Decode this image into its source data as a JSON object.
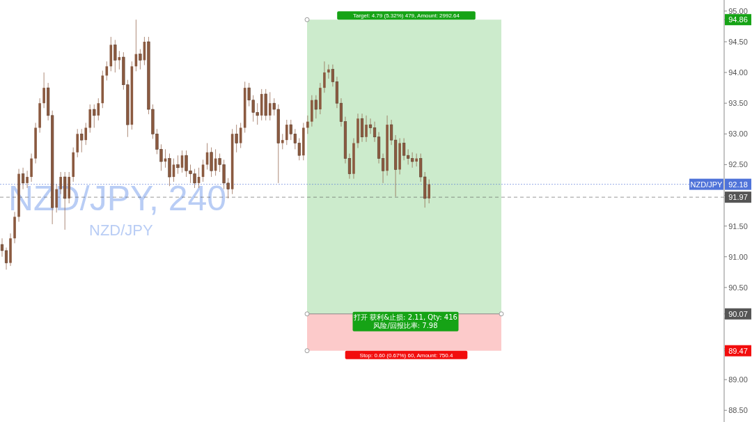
{
  "chart_data": {
    "type": "candlestick",
    "title": "NZD/JPY, 240",
    "subtitle": "NZD/JPY",
    "categories": [
      null,
      null,
      null,
      null,
      null,
      null,
      null,
      null,
      null,
      null,
      null,
      null,
      null,
      null,
      null,
      null,
      null,
      null,
      null,
      null,
      null,
      null,
      null,
      null,
      null,
      null,
      null,
      null,
      null,
      null,
      null,
      null,
      null,
      null,
      null,
      null,
      null,
      null,
      null,
      null,
      null,
      null,
      null,
      null,
      null,
      null,
      null,
      null,
      null,
      null,
      null,
      null,
      null,
      null,
      null,
      null,
      null,
      null,
      null,
      null,
      null,
      null,
      null,
      null,
      null,
      null,
      null,
      null,
      null,
      null,
      null,
      null,
      null,
      null,
      null,
      null,
      null,
      null,
      null,
      null,
      null,
      null,
      null,
      null,
      null,
      null,
      null,
      null,
      null,
      null,
      null,
      null,
      null,
      null,
      null,
      null,
      null,
      null,
      null,
      null,
      null,
      null,
      null,
      null,
      null,
      null,
      null,
      null,
      null,
      null,
      null,
      null,
      null,
      null,
      null,
      null,
      null,
      null,
      null,
      null,
      null,
      null,
      null,
      null,
      null,
      null,
      null,
      null,
      null,
      null,
      null,
      null,
      null,
      null,
      null,
      null,
      null,
      null,
      null,
      null,
      null,
      null,
      null,
      null,
      null,
      null,
      null,
      null,
      null,
      null,
      null,
      null,
      null,
      null,
      null,
      null,
      null,
      null,
      null,
      null,
      null,
      null,
      null,
      null,
      null,
      null,
      null,
      null,
      null,
      null,
      null,
      null,
      null
    ],
    "ohlc": [
      [
        91.2,
        91.3,
        91.0,
        91.1
      ],
      [
        91.1,
        91.15,
        90.79,
        90.9
      ],
      [
        90.9,
        91.38,
        90.85,
        91.3
      ],
      [
        91.3,
        91.73,
        91.22,
        91.65
      ],
      [
        91.65,
        92.43,
        91.57,
        92.35
      ],
      [
        92.35,
        92.45,
        92.1,
        92.2
      ],
      [
        92.2,
        92.4,
        92.12,
        92.3
      ],
      [
        92.3,
        92.68,
        92.22,
        92.6
      ],
      [
        92.6,
        93.18,
        92.52,
        93.1
      ],
      [
        93.1,
        93.58,
        93.02,
        93.5
      ],
      [
        93.5,
        94.0,
        93.42,
        93.75
      ],
      [
        93.75,
        93.83,
        93.22,
        93.3
      ],
      [
        93.3,
        93.38,
        91.53,
        91.8
      ],
      [
        91.8,
        92.18,
        91.72,
        92.1
      ],
      [
        92.1,
        92.38,
        92.02,
        92.3
      ],
      [
        92.3,
        92.38,
        91.44,
        91.95
      ],
      [
        91.95,
        92.38,
        91.87,
        92.3
      ],
      [
        92.3,
        92.78,
        92.22,
        92.7
      ],
      [
        92.7,
        93.08,
        92.62,
        93.0
      ],
      [
        93.0,
        93.08,
        92.7,
        92.9
      ],
      [
        92.9,
        93.18,
        92.82,
        93.1
      ],
      [
        93.1,
        93.48,
        93.02,
        93.4
      ],
      [
        93.4,
        93.48,
        93.1,
        93.3
      ],
      [
        93.3,
        93.58,
        93.22,
        93.5
      ],
      [
        93.5,
        94.03,
        93.42,
        93.95
      ],
      [
        93.95,
        94.18,
        93.87,
        94.1
      ],
      [
        94.1,
        94.58,
        94.02,
        94.45
      ],
      [
        94.45,
        94.53,
        94.0,
        94.2
      ],
      [
        94.2,
        94.35,
        94.05,
        94.25
      ],
      [
        94.25,
        94.33,
        93.72,
        93.8
      ],
      [
        93.8,
        93.88,
        92.95,
        93.15
      ],
      [
        93.15,
        94.18,
        93.07,
        94.1
      ],
      [
        94.1,
        94.86,
        94.02,
        94.3
      ],
      [
        94.3,
        94.38,
        94.05,
        94.2
      ],
      [
        94.2,
        94.58,
        94.12,
        94.5
      ],
      [
        94.5,
        94.58,
        93.32,
        93.4
      ],
      [
        93.4,
        93.48,
        92.92,
        93.0
      ],
      [
        93.0,
        93.08,
        92.67,
        92.75
      ],
      [
        92.75,
        92.83,
        92.4,
        92.55
      ],
      [
        92.55,
        92.75,
        92.45,
        92.6
      ],
      [
        92.6,
        92.68,
        92.15,
        92.3
      ],
      [
        92.3,
        92.6,
        92.22,
        92.5
      ],
      [
        92.5,
        92.65,
        92.35,
        92.45
      ],
      [
        92.45,
        92.73,
        92.37,
        92.65
      ],
      [
        92.65,
        92.73,
        92.3,
        92.4
      ],
      [
        92.4,
        92.5,
        92.2,
        92.35
      ],
      [
        92.35,
        92.43,
        92.12,
        92.2
      ],
      [
        92.2,
        92.45,
        92.12,
        92.3
      ],
      [
        92.3,
        92.58,
        92.22,
        92.5
      ],
      [
        92.5,
        92.85,
        92.42,
        92.7
      ],
      [
        92.7,
        92.78,
        92.3,
        92.4
      ],
      [
        92.4,
        92.75,
        92.32,
        92.6
      ],
      [
        92.6,
        92.68,
        92.38,
        92.5
      ],
      [
        92.5,
        92.58,
        92.1,
        92.2
      ],
      [
        92.2,
        92.28,
        91.95,
        92.1
      ],
      [
        92.1,
        93.08,
        92.02,
        93.0
      ],
      [
        93.0,
        93.15,
        92.7,
        92.85
      ],
      [
        92.85,
        93.18,
        92.77,
        93.1
      ],
      [
        93.1,
        93.85,
        93.02,
        93.75
      ],
      [
        93.75,
        93.83,
        93.45,
        93.55
      ],
      [
        93.55,
        93.63,
        93.2,
        93.35
      ],
      [
        93.35,
        93.5,
        93.15,
        93.3
      ],
      [
        93.3,
        93.73,
        93.22,
        93.65
      ],
      [
        93.65,
        93.73,
        93.22,
        93.3
      ],
      [
        93.3,
        93.68,
        93.22,
        93.5
      ],
      [
        93.5,
        93.58,
        93.3,
        93.4
      ],
      [
        93.4,
        93.48,
        92.2,
        92.85
      ],
      [
        92.85,
        93.0,
        92.75,
        92.9
      ],
      [
        92.9,
        93.23,
        92.82,
        93.15
      ],
      [
        93.15,
        93.23,
        92.9,
        93.0
      ],
      [
        93.0,
        93.08,
        92.75,
        92.85
      ],
      [
        92.85,
        92.93,
        92.57,
        92.65
      ],
      [
        92.65,
        93.18,
        92.57,
        93.1
      ],
      [
        93.1,
        93.3,
        93.0,
        93.2
      ],
      [
        93.2,
        93.63,
        93.12,
        93.55
      ],
      [
        93.55,
        93.63,
        93.25,
        93.4
      ],
      [
        93.4,
        93.83,
        93.32,
        93.75
      ],
      [
        93.75,
        94.18,
        93.67,
        94.0
      ],
      [
        94.0,
        94.13,
        93.9,
        94.05
      ],
      [
        94.05,
        94.13,
        93.77,
        93.85
      ],
      [
        93.85,
        93.93,
        93.42,
        93.5
      ],
      [
        93.5,
        93.58,
        93.12,
        93.2
      ],
      [
        93.2,
        93.28,
        92.52,
        92.6
      ],
      [
        92.6,
        92.68,
        92.27,
        92.35
      ],
      [
        92.35,
        92.93,
        92.27,
        92.85
      ],
      [
        92.85,
        93.33,
        92.77,
        93.25
      ],
      [
        93.25,
        93.33,
        92.87,
        92.95
      ],
      [
        92.95,
        93.3,
        92.87,
        93.15
      ],
      [
        93.15,
        93.25,
        93.0,
        93.1
      ],
      [
        93.1,
        93.2,
        92.87,
        92.95
      ],
      [
        92.95,
        93.03,
        92.52,
        92.6
      ],
      [
        92.6,
        92.68,
        92.2,
        92.4
      ],
      [
        92.4,
        93.3,
        92.32,
        93.15
      ],
      [
        93.15,
        93.23,
        92.82,
        92.9
      ],
      [
        92.9,
        92.98,
        91.98,
        92.42
      ],
      [
        92.42,
        92.93,
        92.34,
        92.85
      ],
      [
        92.85,
        92.93,
        92.57,
        92.65
      ],
      [
        92.65,
        92.75,
        92.5,
        92.6
      ],
      [
        92.6,
        92.7,
        92.45,
        92.55
      ],
      [
        92.55,
        92.68,
        92.47,
        92.6
      ],
      [
        92.6,
        92.68,
        92.22,
        92.3
      ],
      [
        92.3,
        92.38,
        91.8,
        91.95
      ],
      [
        91.95,
        92.26,
        91.87,
        92.18
      ],
      null,
      null,
      null,
      null,
      null,
      null,
      null,
      null,
      null,
      null,
      null,
      null,
      null,
      null,
      null,
      null,
      null,
      null,
      null,
      null,
      null,
      null,
      null,
      null,
      null,
      null,
      null,
      null,
      null,
      null,
      null,
      null,
      null,
      null,
      null,
      null,
      null,
      null,
      null,
      null,
      null,
      null,
      null,
      null,
      null,
      null,
      null,
      null,
      null,
      null,
      null,
      null,
      null,
      null,
      null,
      null,
      null,
      null,
      null,
      null,
      null,
      null,
      null,
      null,
      null,
      null,
      null,
      null,
      null,
      null
    ],
    "color": "#8b5a40",
    "ylim": [
      88.31,
      95.18
    ],
    "yticks": [
      {
        "value": 88.5,
        "label": "88.50"
      },
      {
        "value": 89,
        "label": "89.00"
      },
      {
        "value": 89.5,
        "label": null
      },
      {
        "value": 90,
        "label": null
      },
      89.47,
      90.07,
      94.86,
      {
        "value": 90.5,
        "label": "90.50"
      },
      {
        "value": 91,
        "label": "91.00"
      },
      {
        "value": 91.5,
        "label": "91.50"
      },
      {
        "value": 92,
        "label": null
      },
      {
        "value": 92.5,
        "label": "92.50"
      },
      {
        "value": 93,
        "label": "93.00"
      },
      {
        "value": 93.5,
        "label": "93.50"
      },
      {
        "value": 94,
        "label": "94.00"
      },
      {
        "value": 94.5,
        "label": "94.50"
      },
      {
        "value": 95,
        "label": "95.00"
      }
    ],
    "tick_labels": "y",
    "bands": [
      {
        "axis": "y",
        "from": 90.07,
        "to": 94.86,
        "label": "Target: 4.79 (5.32%) 479, Amount: 2992.64",
        "color": "#16a316"
      },
      {
        "axis": "y",
        "from": 89.47,
        "to": 90.07,
        "label": "Stop: 0.60 (0.67%) 60, Amount: 750.4",
        "color": "#f20d0d"
      }
    ],
    "ref_lines": [
      {
        "axis": "y",
        "value": 92.18,
        "label": "92.18",
        "color": "#4f73d9",
        "line_style": "dotted"
      },
      {
        "axis": "y",
        "value": 91.97,
        "label": "91.97",
        "color": "#555555",
        "line_style": "dashed"
      }
    ],
    "annotations": [
      {
        "text": "NZD/JPY",
        "y": 92.18
      },
      {
        "text": "打开 获利&止损: 2.11, Qty: 416",
        "y": 90.07
      },
      {
        "text": "风险/回报比率: 7.98",
        "y": 90.07
      }
    ]
  }
}
